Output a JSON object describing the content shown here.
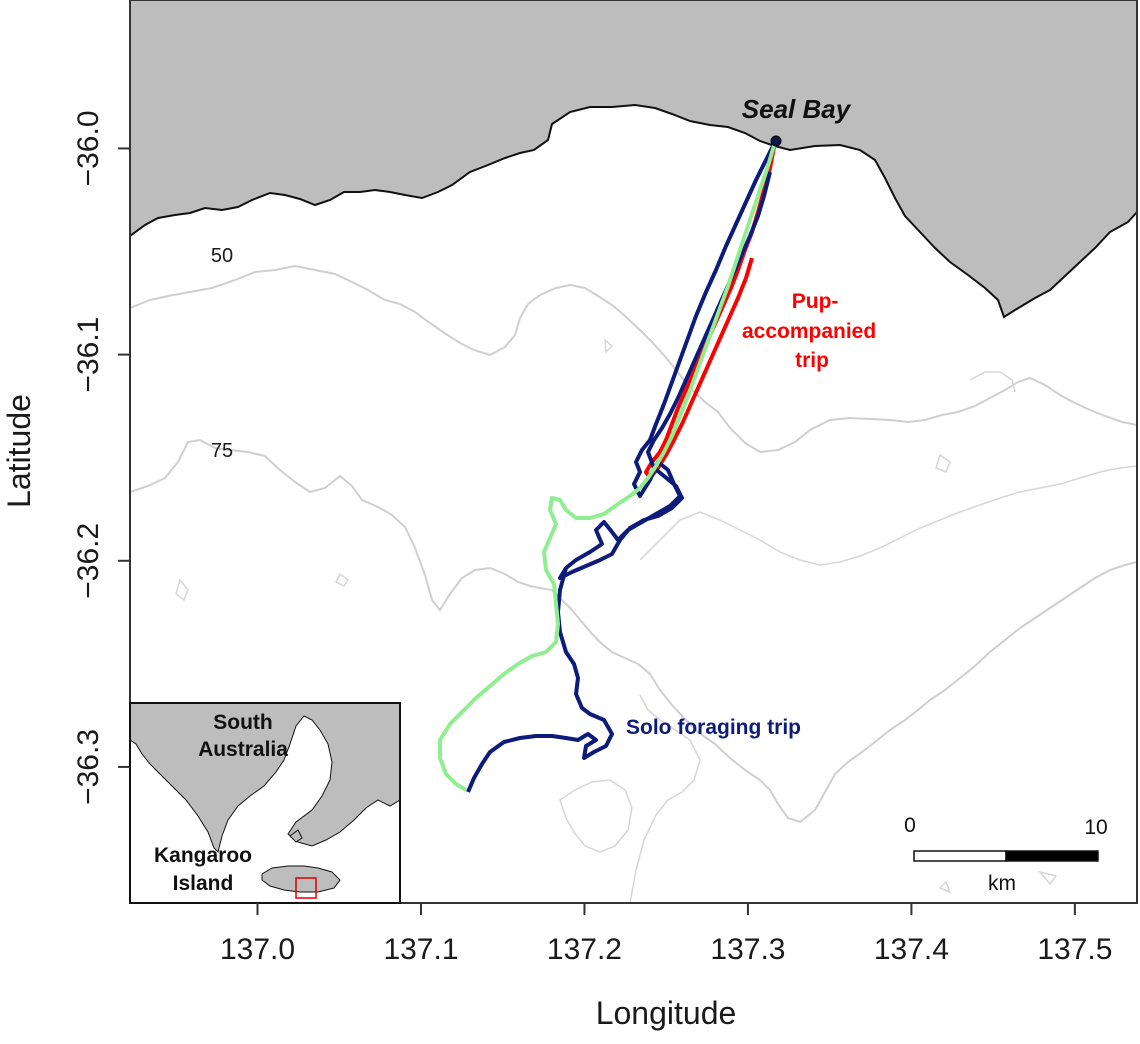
{
  "map": {
    "xlabel": "Longitude",
    "ylabel": "Latitude",
    "x_ticks": [
      "137.0",
      "137.1",
      "137.2",
      "137.3",
      "137.4",
      "137.5"
    ],
    "x_tick_values": [
      137.0,
      137.1,
      137.2,
      137.3,
      137.4,
      137.5
    ],
    "y_ticks": [
      "-36.0",
      "-36.1",
      "-36.2",
      "-36.3"
    ],
    "y_tick_values": [
      -36.0,
      -36.1,
      -36.2,
      -36.3
    ],
    "xlim": [
      136.922,
      137.538
    ],
    "ylim": [
      -36.366,
      -35.928
    ],
    "land_color": "#bdbdbd",
    "contour_color": "#cfcfcf",
    "contour_labels": [
      "50",
      "75"
    ],
    "place": {
      "name": "Seal Bay",
      "lon": 137.316,
      "lat": -35.993
    },
    "tracks": [
      {
        "label": "Pup-\naccompanied\ntrip",
        "color": "#ff0000",
        "lines": [
          "Pup-",
          "accompanied",
          "trip"
        ]
      },
      {
        "label": "Solo foraging trip",
        "color": "#0d1b7a",
        "lines": [
          "Solo foraging trip"
        ]
      },
      {
        "color": "#90ee90"
      }
    ],
    "scale_bar": {
      "start": "0",
      "end": "10",
      "unit": "km"
    },
    "inset": {
      "labels": [
        "South",
        "Australia",
        "Kangaroo",
        "Island"
      ]
    }
  }
}
